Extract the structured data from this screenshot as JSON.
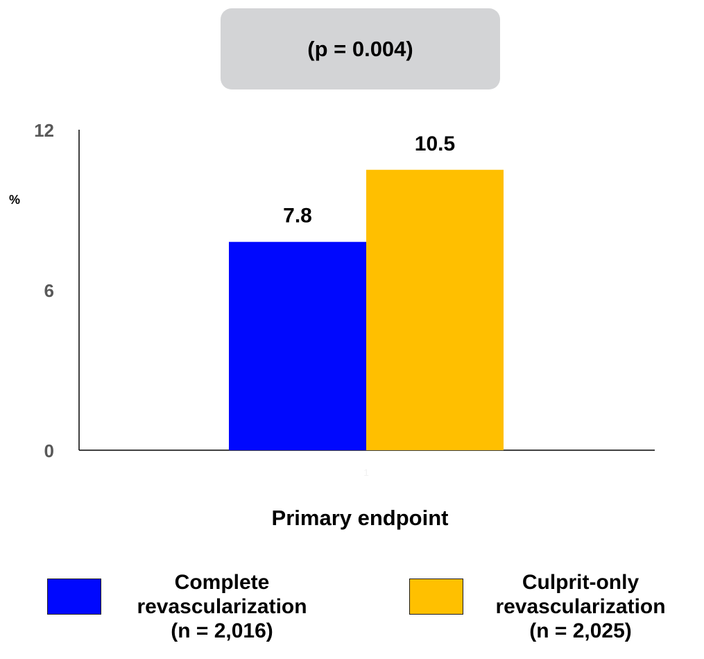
{
  "annotation": {
    "pvalue": "(p = 0.004)"
  },
  "chart_data": {
    "type": "bar",
    "categories": [
      "1"
    ],
    "series": [
      {
        "name": "Complete revascularization (n = 2,016)",
        "values": [
          7.8
        ],
        "color": "#0008fe",
        "label": "7.8"
      },
      {
        "name": "Culprit-only revascularization (n = 2,025)",
        "values": [
          10.5
        ],
        "color": "#ffbf00",
        "label": "10.5"
      }
    ],
    "ylabel": "%",
    "xlabel": "Primary endpoint",
    "ylim": [
      0,
      12
    ],
    "yticks": [
      "0",
      "6",
      "12"
    ],
    "grid": false,
    "legend_position": "bottom"
  },
  "legend": [
    {
      "line1": "Complete",
      "line2": "revascularization",
      "line3": "(n = 2,016)",
      "color": "#0008fe"
    },
    {
      "line1": "Culprit-only",
      "line2": "revascularization",
      "line3": "(n = 2,025)",
      "color": "#ffc000"
    }
  ]
}
